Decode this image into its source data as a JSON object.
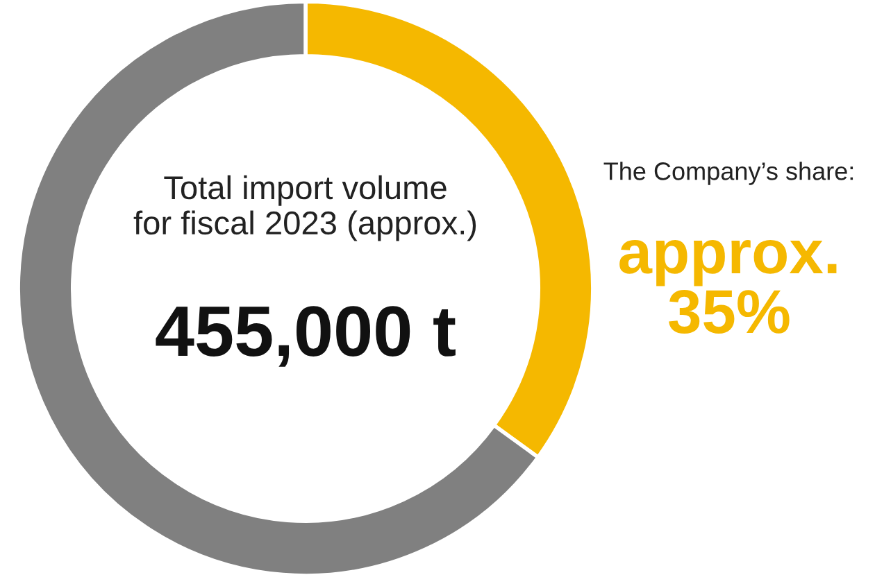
{
  "chart_data": {
    "type": "donut",
    "categories": [
      null,
      null
    ],
    "values": [
      35,
      65
    ],
    "colors": [
      "#f5b800",
      "#808080"
    ],
    "value_labels": [
      "approx.\n35%",
      null
    ],
    "annotations": [
      "Total import volume\nfor fiscal 2023 (approx.)",
      "455,000 t",
      "The Company’s share:"
    ]
  }
}
